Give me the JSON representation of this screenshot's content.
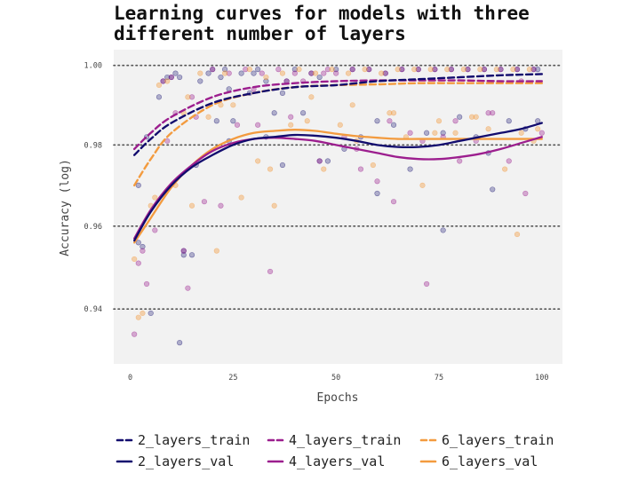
{
  "chart_data": {
    "type": "line",
    "title": "Learning curves for models with three different number of layers",
    "title_lines": [
      "Learning curves for models with three",
      "different number of layers"
    ],
    "xlabel": "Epochs",
    "ylabel": "Accuracy (log)",
    "x_ticks": [
      0,
      25,
      50,
      75,
      100
    ],
    "y_ticks": [
      0.94,
      0.96,
      0.98,
      1.0
    ],
    "y_tick_labels": [
      "0.94",
      "0.96",
      "0.98",
      "1.00"
    ],
    "xlim": [
      -4,
      105
    ],
    "ylim": [
      0.927,
      1.004
    ],
    "y_scale": "log",
    "grid": "horizontal dotted",
    "legend_position": "bottom",
    "series": [
      {
        "name": "2_layers_train",
        "style": "dashed",
        "color": "#120c6e",
        "x": [
          1,
          5,
          10,
          20,
          30,
          40,
          50,
          60,
          70,
          80,
          90,
          100
        ],
        "y": [
          0.9775,
          0.9815,
          0.9855,
          0.9905,
          0.993,
          0.9945,
          0.995,
          0.996,
          0.9965,
          0.997,
          0.9975,
          0.9978
        ]
      },
      {
        "name": "2_layers_val",
        "style": "solid",
        "color": "#120c6e",
        "x": [
          1,
          5,
          10,
          15,
          20,
          25,
          30,
          35,
          40,
          45,
          50,
          55,
          60,
          65,
          70,
          75,
          80,
          85,
          90,
          95,
          100
        ],
        "y": [
          0.9565,
          0.9635,
          0.97,
          0.9745,
          0.9775,
          0.98,
          0.9815,
          0.982,
          0.9825,
          0.9823,
          0.9818,
          0.981,
          0.98,
          0.9795,
          0.9795,
          0.98,
          0.981,
          0.982,
          0.983,
          0.984,
          0.9855
        ]
      },
      {
        "name": "4_layers_train",
        "style": "dashed",
        "color": "#9c1e8e",
        "x": [
          1,
          5,
          10,
          20,
          30,
          40,
          50,
          60,
          70,
          80,
          90,
          100
        ],
        "y": [
          0.979,
          0.983,
          0.987,
          0.992,
          0.9945,
          0.9955,
          0.996,
          0.9962,
          0.9962,
          0.9962,
          0.996,
          0.996
        ]
      },
      {
        "name": "4_layers_val",
        "style": "solid",
        "color": "#9c1e8e",
        "x": [
          1,
          5,
          10,
          15,
          20,
          25,
          30,
          35,
          40,
          45,
          50,
          55,
          60,
          65,
          70,
          75,
          80,
          85,
          90,
          95,
          100
        ],
        "y": [
          0.957,
          0.964,
          0.9705,
          0.975,
          0.9785,
          0.9805,
          0.9815,
          0.9818,
          0.9815,
          0.981,
          0.98,
          0.979,
          0.978,
          0.977,
          0.9765,
          0.9765,
          0.977,
          0.9778,
          0.979,
          0.9805,
          0.982
        ]
      },
      {
        "name": "6_layers_train",
        "style": "dashed",
        "color": "#f39b3f",
        "x": [
          1,
          5,
          10,
          20,
          30,
          40,
          50,
          60,
          70,
          80,
          90,
          100
        ],
        "y": [
          0.97,
          0.9765,
          0.983,
          0.99,
          0.993,
          0.9945,
          0.995,
          0.9952,
          0.9955,
          0.9955,
          0.9955,
          0.9955
        ]
      },
      {
        "name": "6_layers_val",
        "style": "solid",
        "color": "#f39b3f",
        "x": [
          1,
          5,
          10,
          15,
          20,
          25,
          30,
          35,
          40,
          45,
          50,
          55,
          60,
          65,
          70,
          75,
          80,
          85,
          90,
          95,
          100
        ],
        "y": [
          0.956,
          0.962,
          0.9695,
          0.975,
          0.979,
          0.9815,
          0.983,
          0.9835,
          0.9838,
          0.9835,
          0.9828,
          0.9822,
          0.9818,
          0.9815,
          0.9815,
          0.9815,
          0.9815,
          0.9815,
          0.9815,
          0.9815,
          0.9815
        ]
      }
    ],
    "scatter_points": [
      {
        "series": "2_layers",
        "x": [
          2,
          3,
          5,
          7,
          8,
          9,
          10,
          11,
          12,
          13,
          15,
          17,
          19,
          20,
          21,
          22,
          23,
          24,
          25,
          27,
          29,
          30,
          31,
          33,
          35,
          37,
          38,
          40,
          42,
          44,
          46,
          48,
          50,
          52,
          54,
          56,
          58,
          60,
          62,
          64,
          66,
          68,
          70,
          72,
          74,
          76,
          78,
          80,
          82,
          84,
          86,
          88,
          90,
          92,
          94,
          96,
          98,
          99,
          2,
          4,
          12,
          13,
          16,
          24,
          33,
          37,
          46,
          60,
          76,
          87,
          99
        ],
        "y": [
          0.97,
          0.955,
          0.939,
          0.992,
          0.996,
          0.997,
          0.997,
          0.998,
          0.997,
          0.954,
          0.953,
          0.996,
          0.998,
          0.999,
          0.986,
          0.997,
          0.999,
          0.994,
          0.986,
          0.998,
          0.993,
          0.998,
          0.999,
          0.982,
          0.988,
          0.993,
          0.996,
          0.999,
          0.988,
          0.998,
          0.997,
          0.976,
          0.999,
          0.979,
          0.999,
          0.982,
          0.999,
          0.968,
          0.998,
          0.985,
          0.999,
          0.974,
          0.999,
          0.983,
          0.999,
          0.959,
          0.999,
          0.987,
          0.999,
          0.982,
          0.999,
          0.969,
          0.999,
          0.986,
          0.999,
          0.984,
          0.999,
          0.986,
          0.956,
          0.982,
          0.932,
          0.953,
          0.975,
          0.981,
          0.996,
          0.975,
          0.976,
          0.986,
          0.983,
          0.978,
          0.999
        ]
      },
      {
        "series": "4_layers",
        "x": [
          1,
          2,
          4,
          6,
          8,
          10,
          11,
          13,
          14,
          16,
          18,
          20,
          22,
          24,
          26,
          28,
          30,
          32,
          34,
          36,
          38,
          40,
          42,
          44,
          46,
          48,
          50,
          52,
          54,
          56,
          58,
          60,
          62,
          64,
          66,
          68,
          70,
          72,
          74,
          76,
          78,
          80,
          82,
          84,
          86,
          88,
          90,
          92,
          94,
          96,
          98,
          100,
          3,
          9,
          15,
          31,
          39,
          47,
          55,
          63,
          71,
          79,
          87,
          95
        ],
        "y": [
          0.934,
          0.951,
          0.946,
          0.959,
          0.996,
          0.997,
          0.988,
          0.954,
          0.945,
          0.987,
          0.966,
          0.999,
          0.965,
          0.998,
          0.985,
          0.999,
          0.994,
          0.998,
          0.949,
          0.999,
          0.996,
          0.998,
          0.996,
          0.998,
          0.976,
          0.999,
          0.998,
          0.982,
          0.999,
          0.974,
          0.999,
          0.971,
          0.998,
          0.966,
          0.999,
          0.983,
          0.999,
          0.946,
          0.999,
          0.982,
          0.999,
          0.976,
          0.999,
          0.981,
          0.999,
          0.988,
          0.999,
          0.976,
          0.999,
          0.968,
          0.999,
          0.983,
          0.954,
          0.981,
          0.992,
          0.985,
          0.987,
          0.998,
          0.979,
          0.986,
          0.981,
          0.986,
          0.988,
          0.996
        ]
      },
      {
        "series": "6_layers",
        "x": [
          1,
          2,
          3,
          5,
          7,
          9,
          11,
          13,
          15,
          17,
          19,
          21,
          23,
          25,
          27,
          29,
          31,
          33,
          35,
          37,
          39,
          41,
          43,
          45,
          47,
          49,
          51,
          53,
          55,
          57,
          59,
          61,
          63,
          65,
          67,
          69,
          71,
          73,
          75,
          77,
          79,
          81,
          83,
          85,
          87,
          89,
          91,
          93,
          95,
          97,
          99,
          6,
          14,
          22,
          34,
          44,
          54,
          64,
          74,
          84,
          94,
          98
        ],
        "y": [
          0.952,
          0.938,
          0.939,
          0.965,
          0.995,
          0.996,
          0.97,
          0.988,
          0.965,
          0.998,
          0.987,
          0.954,
          0.998,
          0.99,
          0.967,
          0.999,
          0.976,
          0.997,
          0.965,
          0.998,
          0.985,
          0.999,
          0.986,
          0.998,
          0.974,
          0.999,
          0.985,
          0.998,
          0.981,
          0.999,
          0.975,
          0.998,
          0.988,
          0.999,
          0.982,
          0.999,
          0.97,
          0.999,
          0.986,
          0.999,
          0.983,
          0.999,
          0.987,
          0.999,
          0.984,
          0.999,
          0.974,
          0.999,
          0.983,
          0.999,
          0.984,
          0.967,
          0.992,
          0.99,
          0.974,
          0.992,
          0.99,
          0.988,
          0.983,
          0.987,
          0.958,
          0.981
        ]
      }
    ]
  },
  "colors": {
    "2_layers": "#120c6e",
    "4_layers": "#9c1e8e",
    "6_layers": "#f39b3f",
    "plot_background": "#f2f2f2",
    "grid": "#555555"
  }
}
